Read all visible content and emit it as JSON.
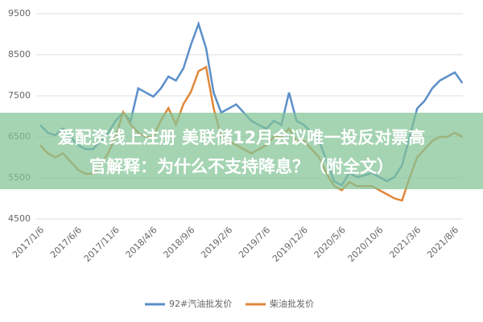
{
  "chart_data": {
    "type": "line",
    "categories": [
      "2017/1/6",
      null,
      null,
      null,
      null,
      "2017/6/6",
      null,
      null,
      null,
      null,
      "2017/11/6",
      null,
      null,
      null,
      null,
      "2018/4/6",
      null,
      null,
      null,
      null,
      "2018/9/6",
      null,
      null,
      null,
      null,
      "2019/2/6",
      null,
      null,
      null,
      null,
      "2019/7/6",
      null,
      null,
      null,
      null,
      "2019/12/6",
      null,
      null,
      null,
      null,
      "2020/5/6",
      null,
      null,
      null,
      null,
      "2020/10/6",
      null,
      null,
      null,
      null,
      "2021/3/6",
      null,
      null,
      null,
      null,
      "2021/8/6",
      null
    ],
    "series": [
      {
        "name": "92#汽油批发价",
        "color": "#5b8fc9",
        "values": [
          6790,
          6600,
          6540,
          6700,
          6500,
          6300,
          6200,
          6200,
          6400,
          6600,
          6890,
          7090,
          6890,
          7680,
          7580,
          7480,
          7680,
          7970,
          7870,
          8170,
          8750,
          9250,
          8660,
          7580,
          7090,
          7190,
          7290,
          7090,
          6890,
          6790,
          6700,
          6890,
          6790,
          7580,
          6890,
          6790,
          6600,
          6400,
          5910,
          5420,
          5320,
          5620,
          5520,
          5560,
          5620,
          5520,
          5420,
          5520,
          5810,
          6500,
          7190,
          7380,
          7680,
          7870,
          7970,
          8070,
          7810
        ]
      },
      {
        "name": "柴油批发价",
        "color": "#e0883a",
        "values": [
          6300,
          6100,
          6000,
          6100,
          5900,
          5700,
          5600,
          5600,
          5800,
          6100,
          6500,
          7100,
          6800,
          6600,
          6500,
          6500,
          6900,
          7200,
          6800,
          7300,
          7600,
          8100,
          8200,
          7200,
          6500,
          6400,
          6300,
          6200,
          6100,
          6200,
          6300,
          6500,
          6500,
          6700,
          6400,
          6400,
          6200,
          6000,
          5600,
          5300,
          5200,
          5400,
          5300,
          5300,
          5300,
          5200,
          5100,
          5000,
          4950,
          5500,
          6000,
          6200,
          6400,
          6500,
          6500,
          6600,
          6500
        ]
      }
    ],
    "ylim": [
      4500,
      9500
    ],
    "yticks": [
      4500,
      5500,
      6500,
      7500,
      8500,
      9500
    ],
    "grid": true
  },
  "banner": {
    "lines": [
      "爱配资线上注册 美联储12月会议唯一投反对票高",
      "官解释：为什么不支持降息？（附全文）"
    ]
  }
}
